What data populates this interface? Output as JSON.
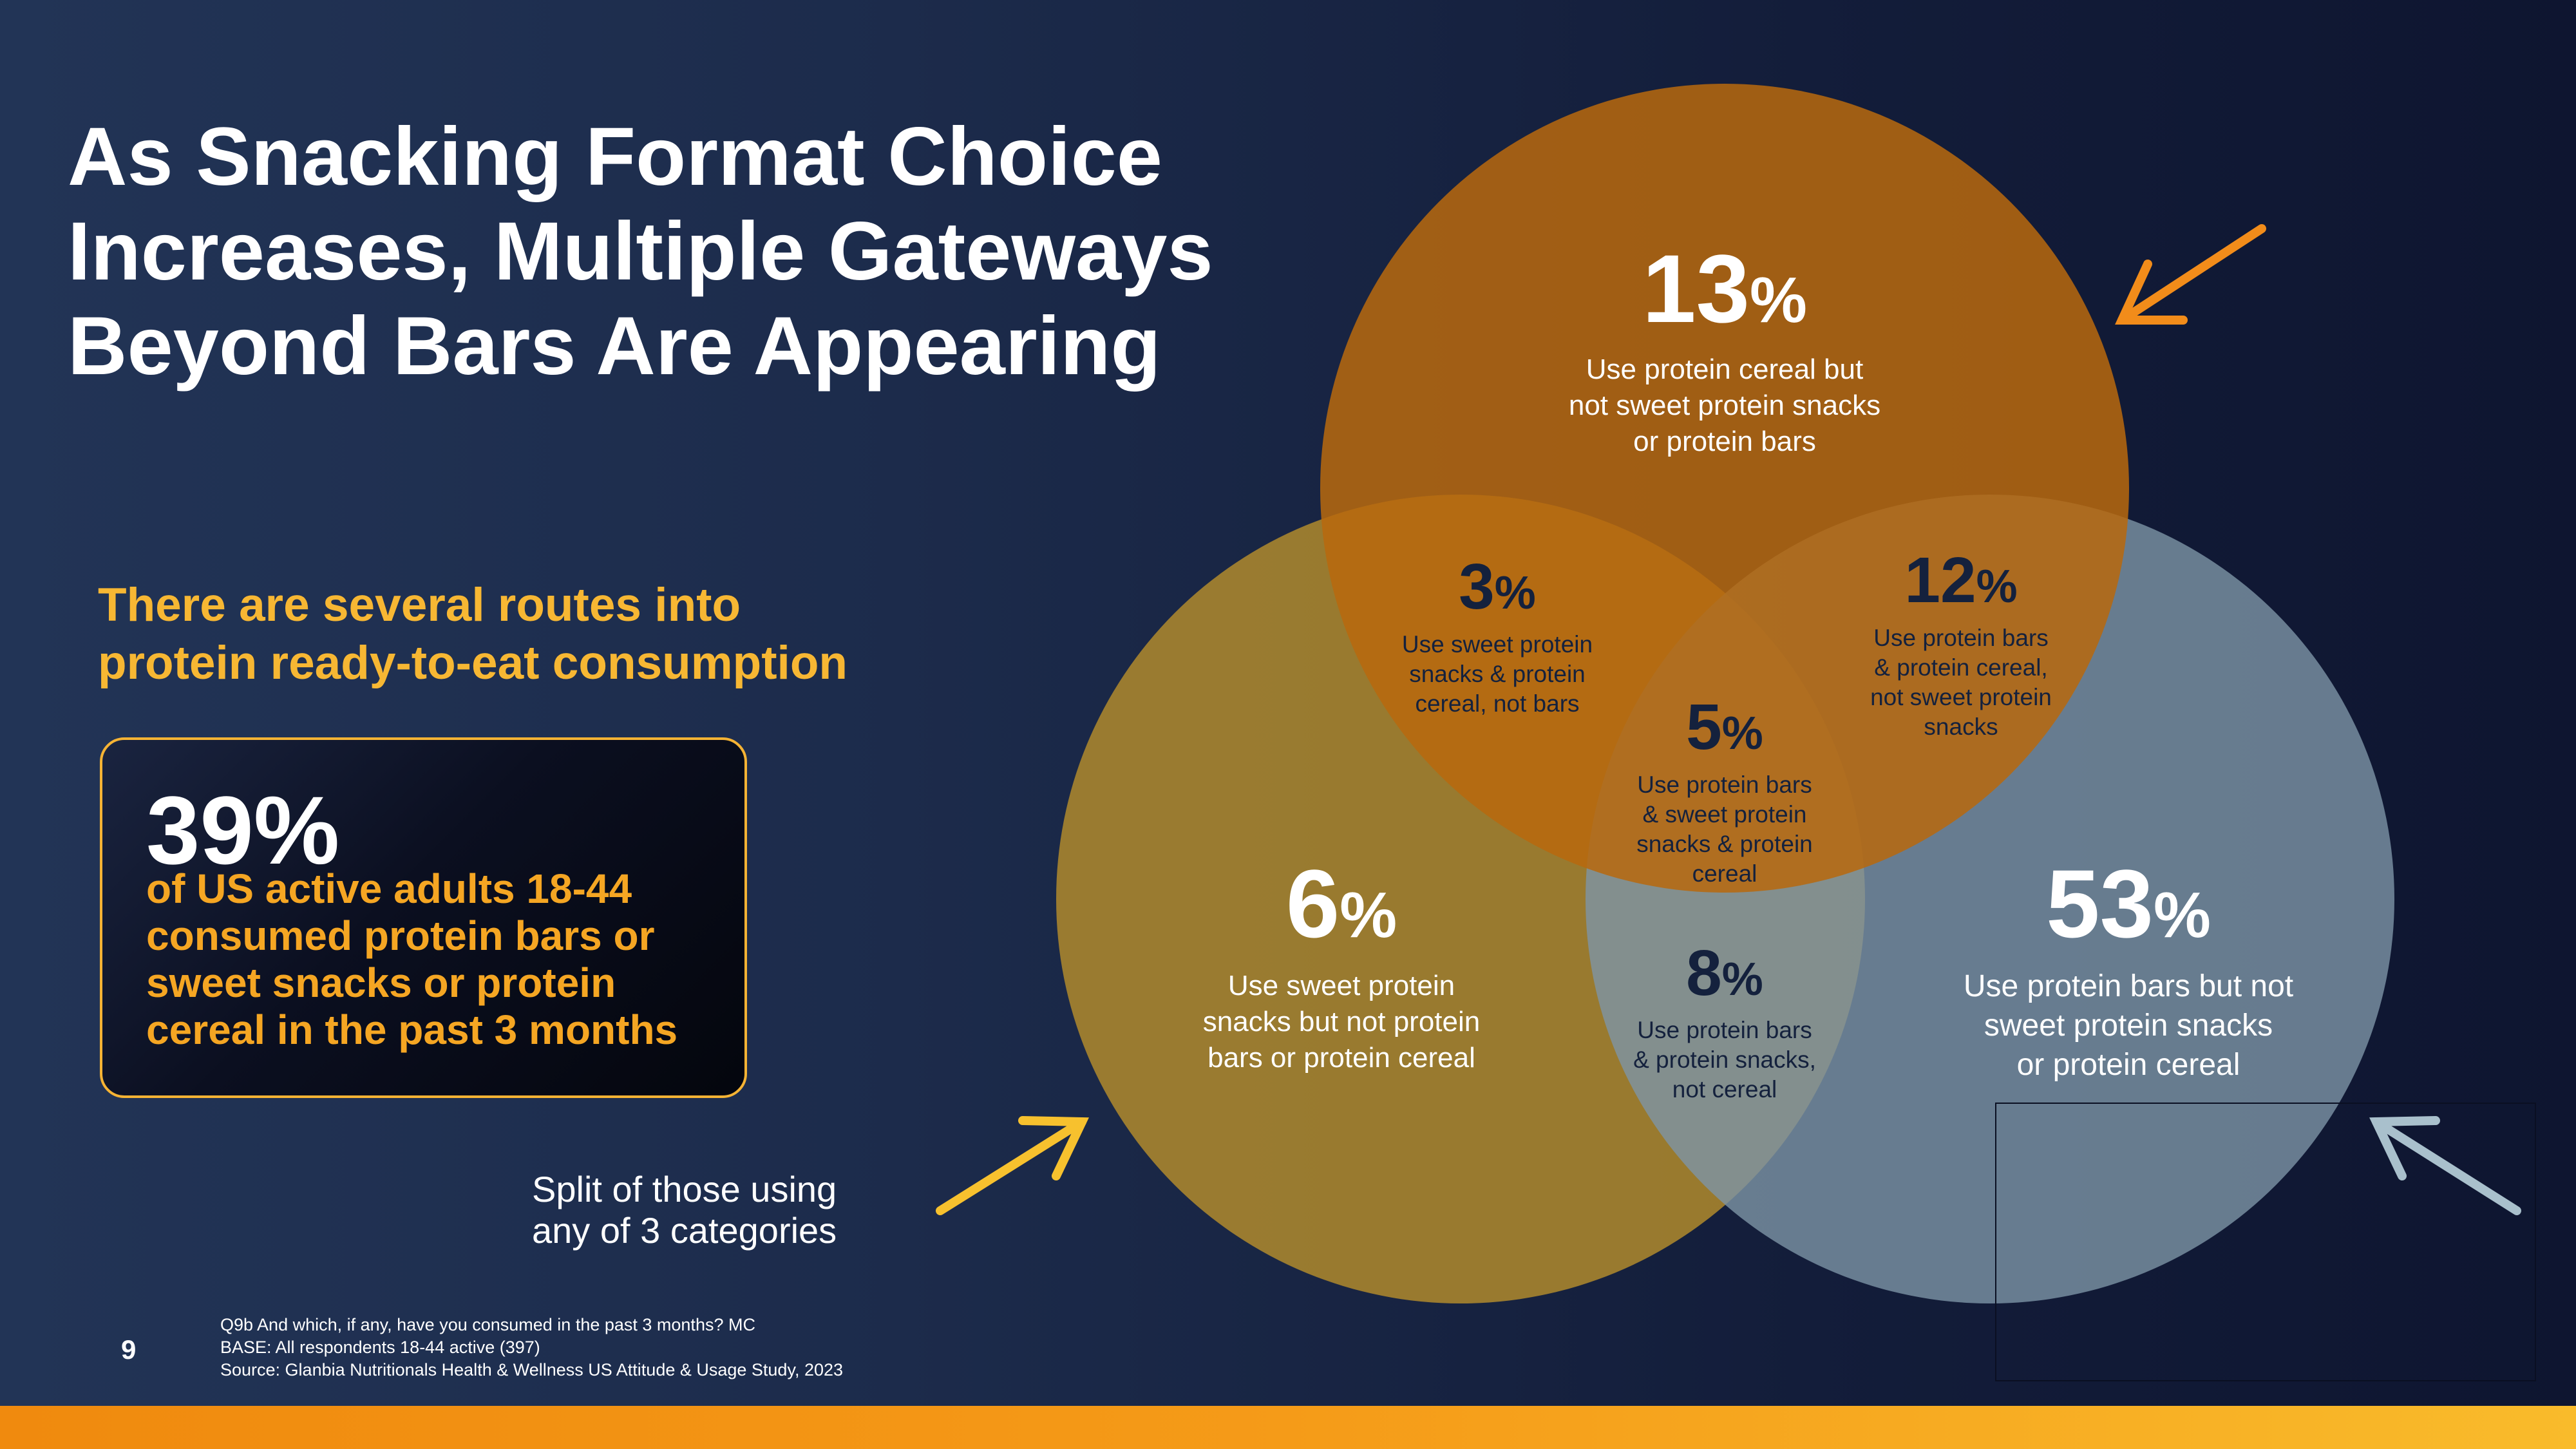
{
  "title_lines": [
    "As Snacking Format Choice",
    "Increases, Multiple Gateways",
    "Beyond Bars Are Appearing"
  ],
  "subtitle_lines": [
    "There are several routes into",
    "protein ready-to-eat consumption"
  ],
  "stat_box": {
    "value": "39%",
    "text_lines": [
      "of US active adults 18-44",
      "consumed protein bars or",
      "sweet snacks or protein",
      "cereal in the past 3 months"
    ]
  },
  "split_note_lines": [
    "Split of those using",
    "any of 3 categories"
  ],
  "page_number": "9",
  "source_lines": [
    "Q9b And which, if any, have you consumed in the past 3 months? MC",
    "BASE: All respondents 18-44 active (397)",
    "Source: Glanbia Nutritionals Health & Wellness US Attitude & Usage Study, 2023"
  ],
  "colors": {
    "cereal_circle": "#b8690e",
    "sweet_snacks_circle": "#b38c2c",
    "bars_circle": "#7d95a6",
    "cereal_arrow": "#f28c1a",
    "sweet_snacks_arrow": "#f7c12e",
    "bars_arrow": "#a9c0cc",
    "accent_gold": "#f7b733",
    "bottom_bar": "#f59b18"
  },
  "venn_regions": [
    {
      "id": "cereal-only",
      "value": "13",
      "suffix": "%",
      "lines": [
        "Use protein cereal but",
        "not sweet protein snacks",
        "or protein bars"
      ]
    },
    {
      "id": "snacks-cereal",
      "value": "3",
      "suffix": "%",
      "lines": [
        "Use sweet protein",
        "snacks & protein",
        "cereal, not bars"
      ]
    },
    {
      "id": "bars-cereal",
      "value": "12",
      "suffix": "%",
      "lines": [
        "Use protein bars",
        "& protein cereal,",
        "not sweet protein",
        "snacks"
      ]
    },
    {
      "id": "all-three",
      "value": "5",
      "suffix": "%",
      "lines": [
        "Use protein bars",
        "& sweet protein",
        "snacks & protein",
        "cereal"
      ]
    },
    {
      "id": "snacks-only",
      "value": "6",
      "suffix": "%",
      "lines": [
        "Use sweet protein",
        "snacks but not protein",
        "bars or protein cereal"
      ]
    },
    {
      "id": "bars-snacks",
      "value": "8",
      "suffix": "%",
      "lines": [
        "Use protein bars",
        "& protein snacks,",
        "not cereal"
      ]
    },
    {
      "id": "bars-only",
      "value": "53",
      "suffix": "%",
      "lines": [
        "Use protein bars but not",
        "sweet protein snacks",
        "or protein cereal"
      ]
    }
  ]
}
